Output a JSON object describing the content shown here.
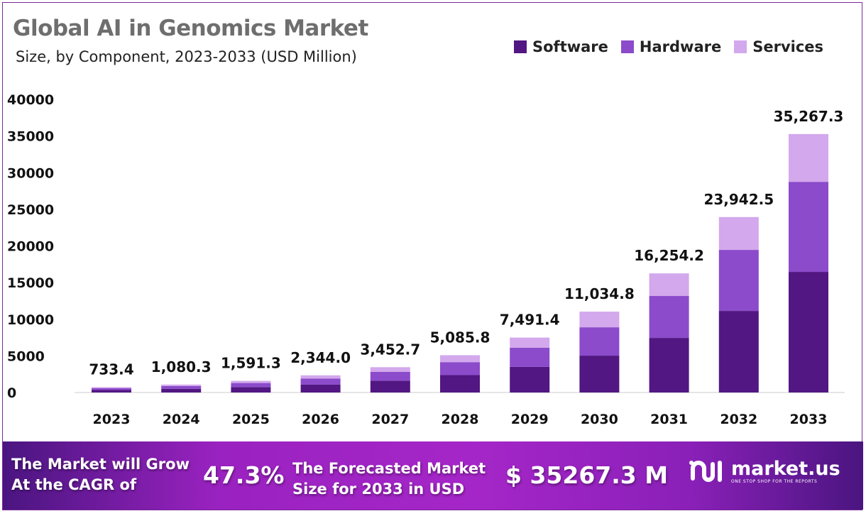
{
  "chart_data": {
    "type": "bar",
    "stacked": true,
    "title": "Global AI in Genomics Market",
    "subtitle": "Size, by Component, 2023-2033 (USD Million)",
    "categories": [
      "2023",
      "2024",
      "2025",
      "2026",
      "2027",
      "2028",
      "2029",
      "2030",
      "2031",
      "2032",
      "2033"
    ],
    "series": [
      {
        "name": "Software",
        "color": "#521782",
        "values": [
          342.5,
          504.5,
          743.1,
          1094.6,
          1612.4,
          2375.1,
          3498.5,
          5030,
          7450,
          11130,
          16460
        ]
      },
      {
        "name": "Hardware",
        "color": "#8b4bcb",
        "values": [
          255.2,
          375.9,
          553.8,
          815.7,
          1201.5,
          1769.9,
          2607.0,
          3870,
          5720,
          8330,
          12290
        ]
      },
      {
        "name": "Services",
        "color": "#d3a8ec",
        "values": [
          135.7,
          199.9,
          294.4,
          433.7,
          638.8,
          940.8,
          1385.9,
          2134.8,
          3084.2,
          4482.5,
          6517.3
        ]
      }
    ],
    "totals": [
      733.4,
      1080.3,
      1591.3,
      2344.0,
      3452.7,
      5085.8,
      7491.4,
      11034.8,
      16254.2,
      23942.5,
      35267.3
    ],
    "total_labels": [
      "733.4",
      "1,080.3",
      "1,591.3",
      "2,344.0",
      "3,452.7",
      "5,085.8",
      "7,491.4",
      "11,034.8",
      "16,254.2",
      "23,942.5",
      "35,267.3"
    ],
    "yticks": [
      "0",
      "5000",
      "10000",
      "15000",
      "20000",
      "25000",
      "30000",
      "35000",
      "40000"
    ],
    "ylim": [
      0,
      40000
    ],
    "grid": false,
    "legend": "top-right"
  },
  "footer": {
    "cagr_text_1": "The Market will Grow",
    "cagr_text_2": "At the CAGR of",
    "cagr_value": "47.3%",
    "forecast_text_1": "The Forecasted Market",
    "forecast_text_2": "Size for 2033 in USD",
    "forecast_value": "$ 35267.3 M",
    "brand": "market.us",
    "brand_tagline": "ONE STOP SHOP FOR THE REPORTS"
  }
}
